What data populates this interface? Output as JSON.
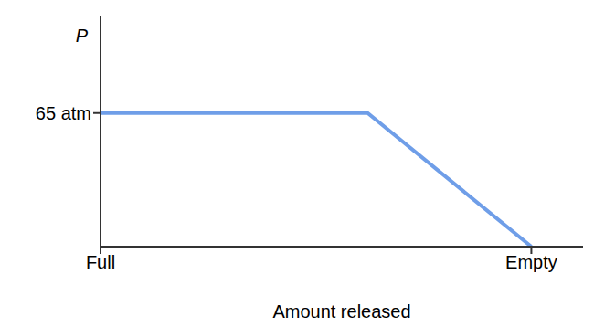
{
  "chart_data": {
    "type": "line",
    "xlabel": "Amount released",
    "ylabel": "P",
    "x": [
      0,
      0.62,
      1
    ],
    "values": [
      65,
      65,
      0
    ],
    "color": "#6f9ee8",
    "xlim": [
      0,
      1.12
    ],
    "xticks": [
      {
        "value": 0,
        "label": "Full"
      },
      {
        "value": 1,
        "label": "Empty"
      }
    ],
    "ylim": [
      0,
      112
    ],
    "yticks": [
      {
        "value": 65,
        "label": "65 atm"
      }
    ],
    "grid": false
  }
}
